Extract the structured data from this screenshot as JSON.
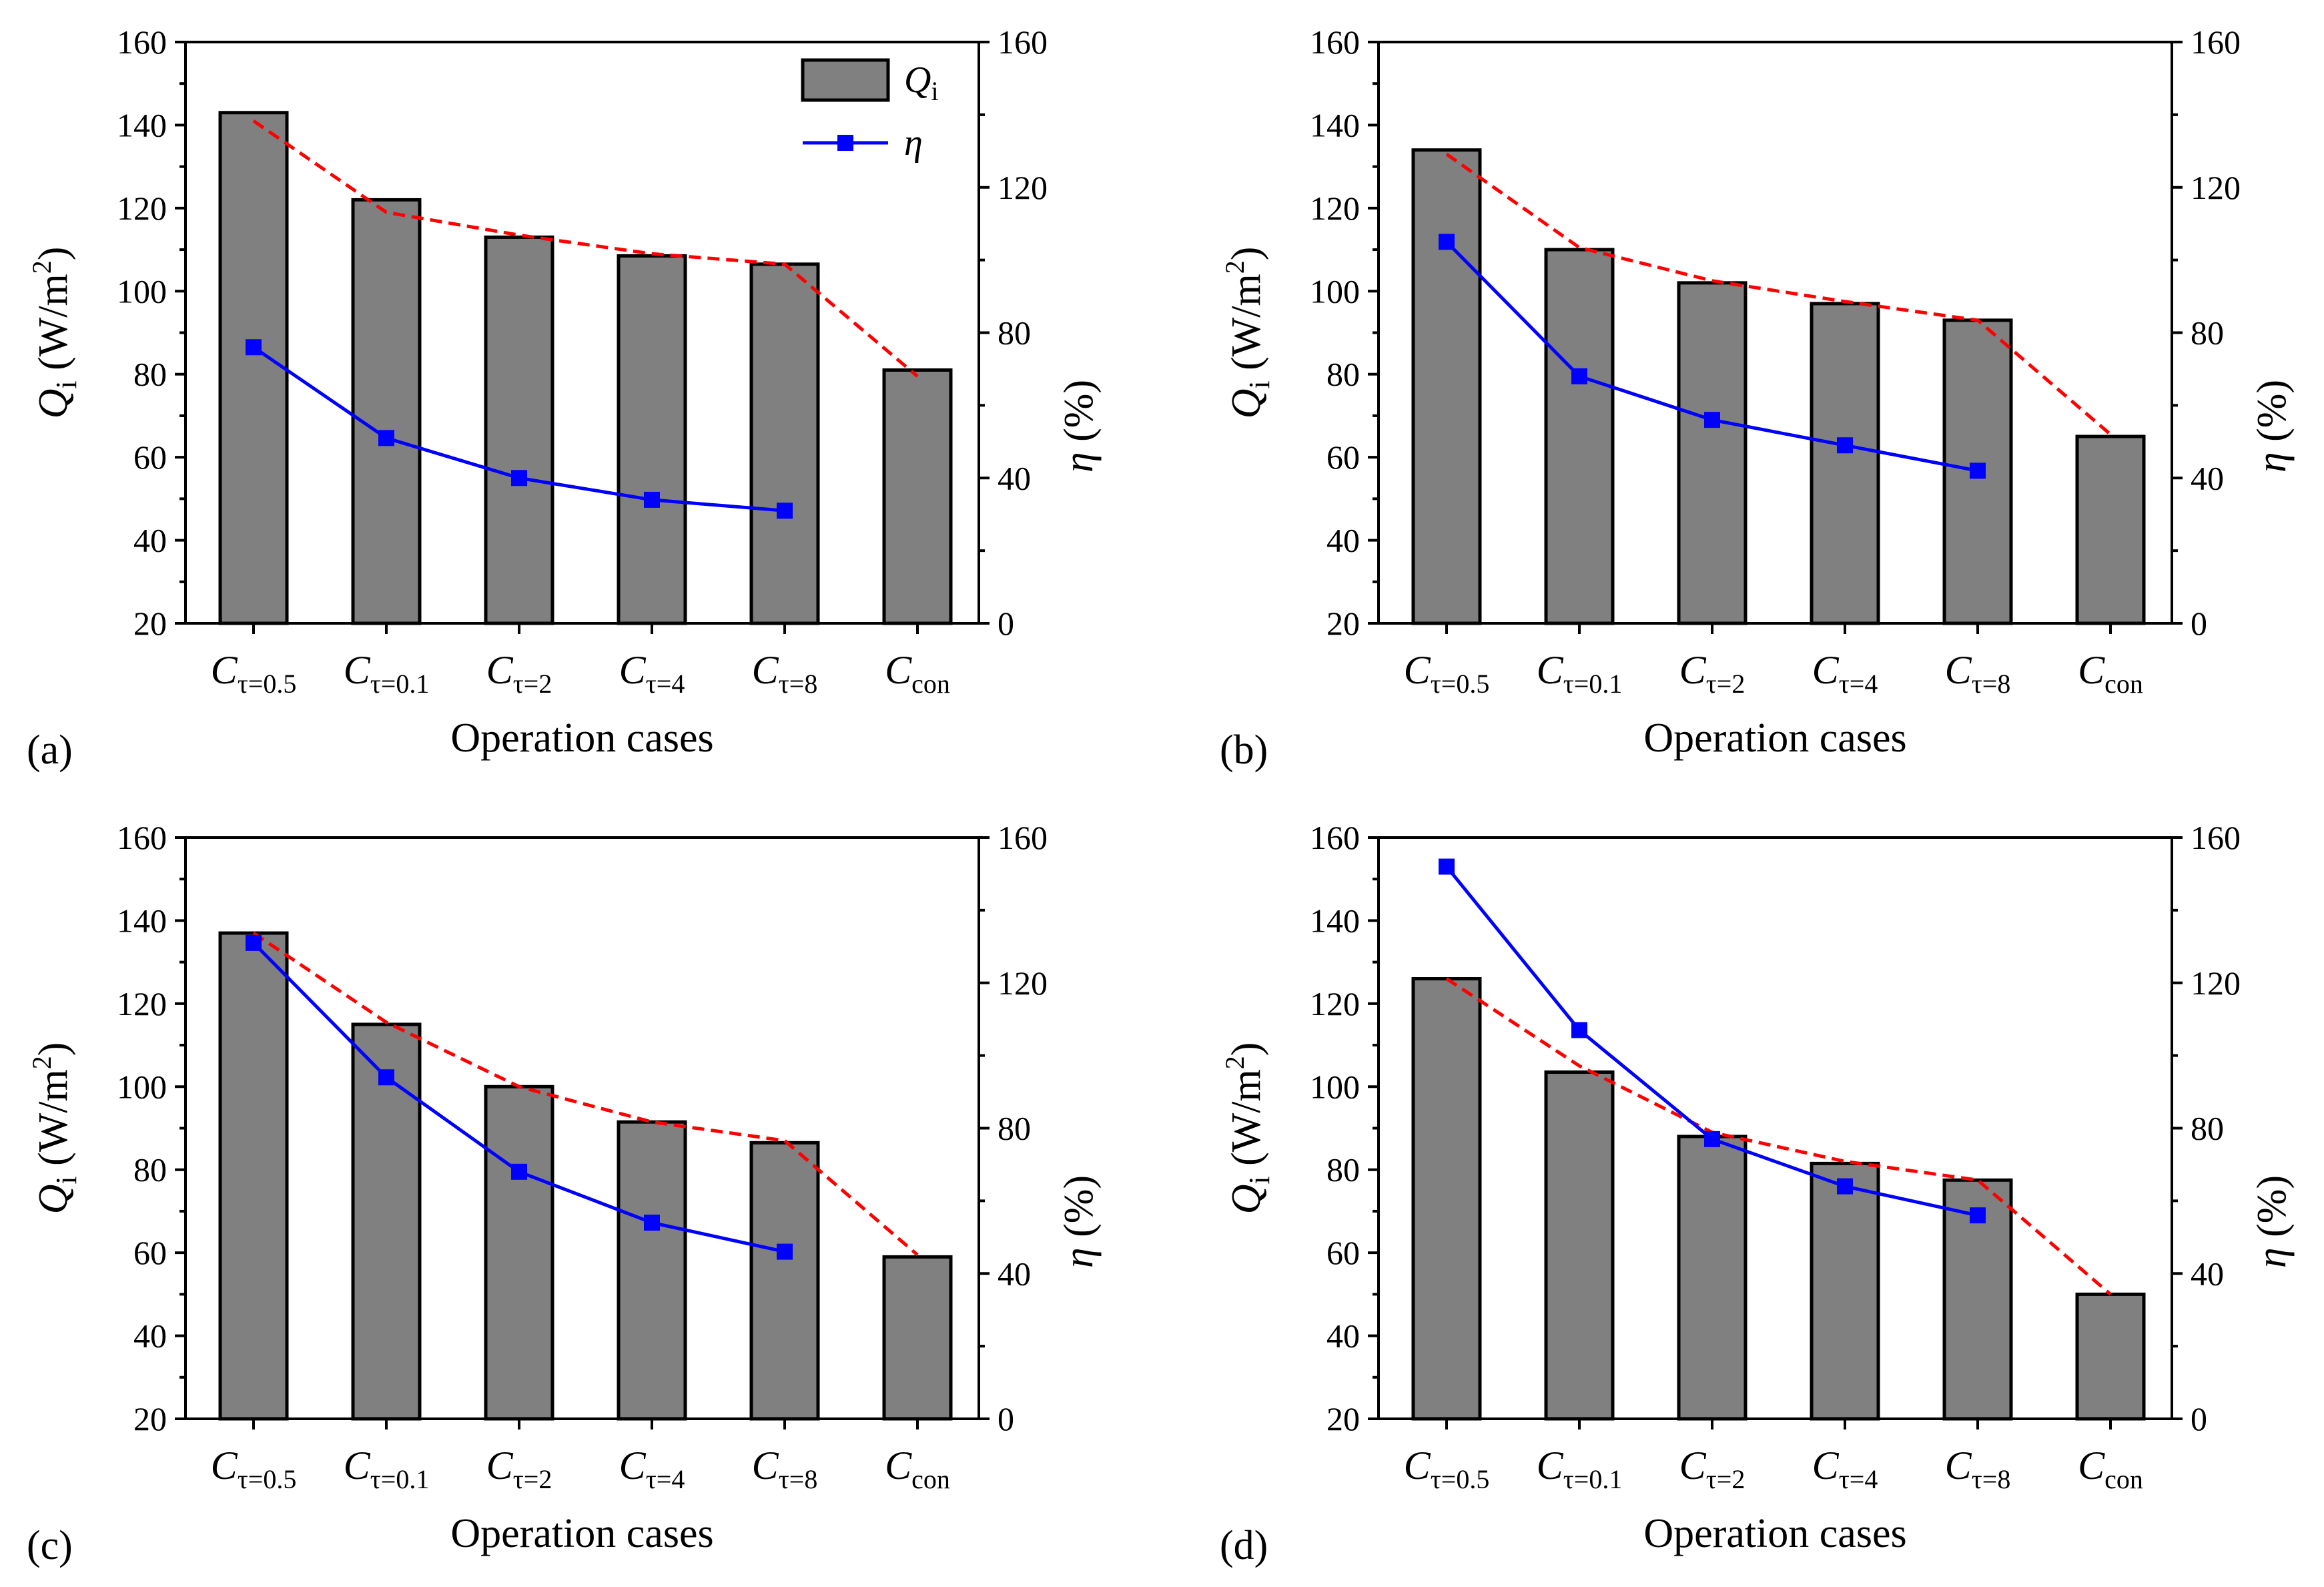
{
  "chart_data": [
    {
      "type": "bar",
      "panel_label": "(a)",
      "categories": [
        {
          "base": "C",
          "sub": "τ=0.5"
        },
        {
          "base": "C",
          "sub": "τ=0.1"
        },
        {
          "base": "C",
          "sub": "τ=2"
        },
        {
          "base": "C",
          "sub": "τ=4"
        },
        {
          "base": "C",
          "sub": "τ=8"
        },
        {
          "base": "C",
          "sub": "con"
        }
      ],
      "xlabel": "Operation cases",
      "ylabel": {
        "sym": "Q",
        "sub": "i",
        "unit": " (W/m",
        "sup": "2",
        "end": ")"
      },
      "y2label": {
        "sym": "η",
        "unit": " (%)"
      },
      "ylim": [
        20,
        160
      ],
      "y2lim": [
        0,
        160
      ],
      "yticks": [
        20,
        40,
        60,
        80,
        100,
        120,
        140,
        160
      ],
      "y2ticks": [
        0,
        40,
        80,
        120,
        160
      ],
      "series": [
        {
          "name": "Q",
          "name_sub": "i",
          "type": "bar",
          "axis": "left",
          "color": "#808080",
          "values": [
            143,
            122,
            113,
            108.5,
            106.5,
            81
          ]
        },
        {
          "name": "η",
          "type": "line",
          "axis": "right",
          "color": "#0000ff",
          "marker": "square",
          "values": [
            76,
            51,
            40,
            34,
            31,
            null
          ]
        },
        {
          "type": "line",
          "axis": "left",
          "color": "#ff0000",
          "dash": true,
          "values": [
            141,
            119,
            113.5,
            109,
            106.5,
            79.5
          ]
        }
      ],
      "legend": {
        "placement": "top-right"
      }
    },
    {
      "type": "bar",
      "panel_label": "(b)",
      "categories": [
        {
          "base": "C",
          "sub": "τ=0.5"
        },
        {
          "base": "C",
          "sub": "τ=0.1"
        },
        {
          "base": "C",
          "sub": "τ=2"
        },
        {
          "base": "C",
          "sub": "τ=4"
        },
        {
          "base": "C",
          "sub": "τ=8"
        },
        {
          "base": "C",
          "sub": "con"
        }
      ],
      "xlabel": "Operation cases",
      "ylabel": {
        "sym": "Q",
        "sub": "i",
        "unit": " (W/m",
        "sup": "2",
        "end": ")"
      },
      "y2label": {
        "sym": "η",
        "unit": " (%)"
      },
      "ylim": [
        20,
        160
      ],
      "y2lim": [
        0,
        160
      ],
      "yticks": [
        20,
        40,
        60,
        80,
        100,
        120,
        140,
        160
      ],
      "y2ticks": [
        0,
        40,
        80,
        120,
        160
      ],
      "series": [
        {
          "name": "Q",
          "name_sub": "i",
          "type": "bar",
          "axis": "left",
          "color": "#808080",
          "values": [
            134,
            110,
            102,
            97,
            93,
            65
          ]
        },
        {
          "name": "η",
          "type": "line",
          "axis": "right",
          "color": "#0000ff",
          "marker": "square",
          "values": [
            105,
            68,
            56,
            49,
            42,
            null
          ]
        },
        {
          "type": "line",
          "axis": "left",
          "color": "#ff0000",
          "dash": true,
          "values": [
            133,
            110.5,
            102.5,
            97.5,
            93,
            65.5
          ]
        }
      ]
    },
    {
      "type": "bar",
      "panel_label": "(c)",
      "categories": [
        {
          "base": "C",
          "sub": "τ=0.5"
        },
        {
          "base": "C",
          "sub": "τ=0.1"
        },
        {
          "base": "C",
          "sub": "τ=2"
        },
        {
          "base": "C",
          "sub": "τ=4"
        },
        {
          "base": "C",
          "sub": "τ=8"
        },
        {
          "base": "C",
          "sub": "con"
        }
      ],
      "xlabel": "Operation cases",
      "ylabel": {
        "sym": "Q",
        "sub": "i",
        "unit": " (W/m",
        "sup": "2",
        "end": ")"
      },
      "y2label": {
        "sym": "η",
        "unit": " (%)"
      },
      "ylim": [
        20,
        160
      ],
      "y2lim": [
        0,
        160
      ],
      "yticks": [
        20,
        40,
        60,
        80,
        100,
        120,
        140,
        160
      ],
      "y2ticks": [
        0,
        40,
        80,
        120,
        160
      ],
      "series": [
        {
          "name": "Q",
          "name_sub": "i",
          "type": "bar",
          "axis": "left",
          "color": "#808080",
          "values": [
            137,
            115,
            100,
            91.5,
            86.5,
            59
          ]
        },
        {
          "name": "η",
          "type": "line",
          "axis": "right",
          "color": "#0000ff",
          "marker": "square",
          "values": [
            131,
            94,
            68,
            54,
            46,
            null
          ]
        },
        {
          "type": "line",
          "axis": "left",
          "color": "#ff0000",
          "dash": true,
          "values": [
            137,
            115.5,
            100,
            91.5,
            87,
            59.5
          ]
        }
      ]
    },
    {
      "type": "bar",
      "panel_label": "(d)",
      "categories": [
        {
          "base": "C",
          "sub": "τ=0.5"
        },
        {
          "base": "C",
          "sub": "τ=0.1"
        },
        {
          "base": "C",
          "sub": "τ=2"
        },
        {
          "base": "C",
          "sub": "τ=4"
        },
        {
          "base": "C",
          "sub": "τ=8"
        },
        {
          "base": "C",
          "sub": "con"
        }
      ],
      "xlabel": "Operation cases",
      "ylabel": {
        "sym": "Q",
        "sub": "i",
        "unit": " (W/m",
        "sup": "2",
        "end": ")"
      },
      "y2label": {
        "sym": "η",
        "unit": " (%)"
      },
      "ylim": [
        20,
        160
      ],
      "y2lim": [
        0,
        160
      ],
      "yticks": [
        20,
        40,
        60,
        80,
        100,
        120,
        140,
        160
      ],
      "y2ticks": [
        0,
        40,
        80,
        120,
        160
      ],
      "series": [
        {
          "name": "Q",
          "name_sub": "i",
          "type": "bar",
          "axis": "left",
          "color": "#808080",
          "values": [
            126,
            103.5,
            88,
            81.5,
            77.5,
            50
          ]
        },
        {
          "name": "η",
          "type": "line",
          "axis": "right",
          "color": "#0000ff",
          "marker": "square",
          "values": [
            152,
            107,
            77,
            64,
            56,
            null
          ]
        },
        {
          "type": "line",
          "axis": "left",
          "color": "#ff0000",
          "dash": true,
          "values": [
            126,
            105,
            89,
            82,
            77.5,
            50
          ]
        }
      ]
    }
  ]
}
